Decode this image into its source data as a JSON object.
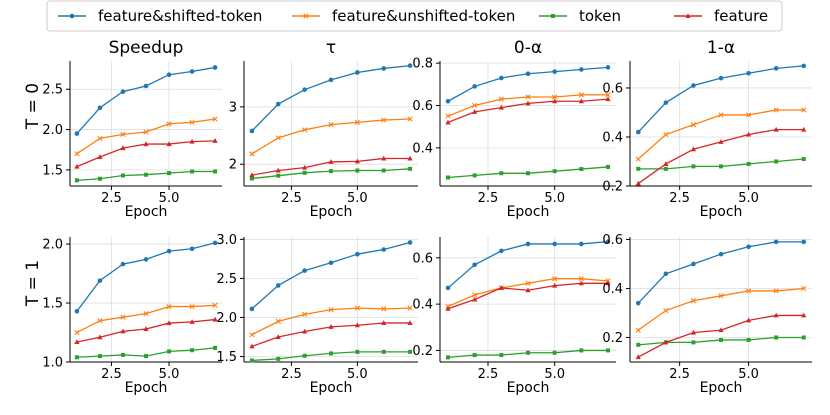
{
  "legend": {
    "entries": [
      {
        "name": "feature&shifted-token",
        "color": "#1f77b4",
        "marker": "circle"
      },
      {
        "name": "feature&unshifted-token",
        "color": "#ff7f0e",
        "marker": "x"
      },
      {
        "name": "token",
        "color": "#2ca02c",
        "marker": "square"
      },
      {
        "name": "feature",
        "color": "#d62728",
        "marker": "triangle"
      }
    ],
    "placement": "top-center"
  },
  "row_labels": [
    "T = 0",
    "T = 1"
  ],
  "column_titles": [
    "Speedup",
    "τ",
    "0-α",
    "1-α"
  ],
  "chart_data": [
    {
      "type": "line",
      "title": "Speedup",
      "row": "T = 0",
      "xlabel": "Epoch",
      "ylabel": "",
      "x": [
        1,
        2,
        3,
        4,
        5,
        6,
        7
      ],
      "xlim": [
        0.7,
        7.3
      ],
      "xticks": [
        "2.5",
        "5.0"
      ],
      "ylim": [
        1.3,
        2.85
      ],
      "yticks": [
        "1.5",
        "2.0",
        "2.5"
      ],
      "grid": true,
      "series": [
        {
          "name": "feature&shifted-token",
          "values": [
            1.95,
            2.27,
            2.47,
            2.54,
            2.68,
            2.72,
            2.77
          ]
        },
        {
          "name": "feature&unshifted-token",
          "values": [
            1.7,
            1.89,
            1.94,
            1.97,
            2.07,
            2.09,
            2.13
          ]
        },
        {
          "name": "token",
          "values": [
            1.37,
            1.39,
            1.43,
            1.44,
            1.46,
            1.48,
            1.48
          ]
        },
        {
          "name": "feature",
          "values": [
            1.54,
            1.66,
            1.77,
            1.82,
            1.82,
            1.85,
            1.86
          ]
        }
      ]
    },
    {
      "type": "line",
      "title": "τ",
      "row": "T = 0",
      "xlabel": "Epoch",
      "ylabel": "",
      "x": [
        1,
        2,
        3,
        4,
        5,
        6,
        7
      ],
      "xlim": [
        0.7,
        7.3
      ],
      "xticks": [
        "2.5",
        "5.0"
      ],
      "ylim": [
        1.62,
        3.8
      ],
      "yticks": [
        "2",
        "3"
      ],
      "grid": true,
      "series": [
        {
          "name": "feature&shifted-token",
          "values": [
            2.58,
            3.05,
            3.3,
            3.47,
            3.6,
            3.67,
            3.72
          ]
        },
        {
          "name": "feature&unshifted-token",
          "values": [
            2.18,
            2.46,
            2.6,
            2.69,
            2.73,
            2.77,
            2.79
          ]
        },
        {
          "name": "token",
          "values": [
            1.75,
            1.8,
            1.85,
            1.88,
            1.89,
            1.89,
            1.92
          ]
        },
        {
          "name": "feature",
          "values": [
            1.81,
            1.89,
            1.94,
            2.04,
            2.05,
            2.1,
            2.1
          ]
        }
      ]
    },
    {
      "type": "line",
      "title": "0-α",
      "row": "T = 0",
      "xlabel": "Epoch",
      "ylabel": "",
      "x": [
        1,
        2,
        3,
        4,
        5,
        6,
        7
      ],
      "xlim": [
        0.7,
        7.3
      ],
      "xticks": [
        "2.5",
        "5.0"
      ],
      "ylim": [
        0.22,
        0.81
      ],
      "yticks": [
        "0.4",
        "0.6",
        "0.8"
      ],
      "grid": true,
      "series": [
        {
          "name": "feature&shifted-token",
          "values": [
            0.62,
            0.69,
            0.73,
            0.75,
            0.76,
            0.77,
            0.78
          ]
        },
        {
          "name": "feature&unshifted-token",
          "values": [
            0.55,
            0.6,
            0.63,
            0.64,
            0.64,
            0.65,
            0.65
          ]
        },
        {
          "name": "token",
          "values": [
            0.26,
            0.27,
            0.28,
            0.28,
            0.29,
            0.3,
            0.31
          ]
        },
        {
          "name": "feature",
          "values": [
            0.52,
            0.57,
            0.59,
            0.61,
            0.62,
            0.62,
            0.63
          ]
        }
      ]
    },
    {
      "type": "line",
      "title": "1-α",
      "row": "T = 0",
      "xlabel": "Epoch",
      "ylabel": "",
      "x": [
        1,
        2,
        3,
        4,
        5,
        6,
        7
      ],
      "xlim": [
        0.7,
        7.3
      ],
      "xticks": [
        "2.5",
        "5.0"
      ],
      "ylim": [
        0.2,
        0.71
      ],
      "yticks": [
        "0.2",
        "0.4",
        "0.6"
      ],
      "grid": true,
      "series": [
        {
          "name": "feature&shifted-token",
          "values": [
            0.42,
            0.54,
            0.61,
            0.64,
            0.66,
            0.68,
            0.69
          ]
        },
        {
          "name": "feature&unshifted-token",
          "values": [
            0.31,
            0.41,
            0.45,
            0.49,
            0.49,
            0.51,
            0.51
          ]
        },
        {
          "name": "token",
          "values": [
            0.27,
            0.27,
            0.28,
            0.28,
            0.29,
            0.3,
            0.31
          ]
        },
        {
          "name": "feature",
          "values": [
            0.21,
            0.29,
            0.35,
            0.38,
            0.41,
            0.43,
            0.43
          ]
        }
      ]
    },
    {
      "type": "line",
      "title": "",
      "row": "T = 1",
      "xlabel": "Epoch",
      "ylabel": "",
      "x": [
        1,
        2,
        3,
        4,
        5,
        6,
        7
      ],
      "xlim": [
        0.7,
        7.3
      ],
      "xticks": [
        "2.5",
        "5.0"
      ],
      "ylim": [
        1.0,
        2.06
      ],
      "yticks": [
        "1.0",
        "1.5",
        "2.0"
      ],
      "grid": true,
      "series": [
        {
          "name": "feature&shifted-token",
          "values": [
            1.43,
            1.69,
            1.83,
            1.87,
            1.94,
            1.96,
            2.01
          ]
        },
        {
          "name": "feature&unshifted-token",
          "values": [
            1.25,
            1.35,
            1.38,
            1.41,
            1.47,
            1.47,
            1.48
          ]
        },
        {
          "name": "token",
          "values": [
            1.04,
            1.05,
            1.06,
            1.05,
            1.09,
            1.1,
            1.12
          ]
        },
        {
          "name": "feature",
          "values": [
            1.17,
            1.21,
            1.26,
            1.28,
            1.33,
            1.34,
            1.36
          ]
        }
      ]
    },
    {
      "type": "line",
      "title": "",
      "row": "T = 1",
      "xlabel": "Epoch",
      "ylabel": "",
      "x": [
        1,
        2,
        3,
        4,
        5,
        6,
        7
      ],
      "xlim": [
        0.7,
        7.3
      ],
      "xticks": [
        "2.5",
        "5.0"
      ],
      "ylim": [
        1.43,
        3.03
      ],
      "yticks": [
        "1.5",
        "2.0",
        "2.5",
        "3.0"
      ],
      "grid": true,
      "series": [
        {
          "name": "feature&shifted-token",
          "values": [
            2.11,
            2.41,
            2.6,
            2.7,
            2.81,
            2.87,
            2.96
          ]
        },
        {
          "name": "feature&unshifted-token",
          "values": [
            1.78,
            1.95,
            2.04,
            2.1,
            2.12,
            2.11,
            2.12
          ]
        },
        {
          "name": "token",
          "values": [
            1.45,
            1.47,
            1.51,
            1.54,
            1.56,
            1.56,
            1.56
          ]
        },
        {
          "name": "feature",
          "values": [
            1.63,
            1.75,
            1.82,
            1.88,
            1.9,
            1.93,
            1.93
          ]
        }
      ]
    },
    {
      "type": "line",
      "title": "",
      "row": "T = 1",
      "xlabel": "Epoch",
      "ylabel": "",
      "x": [
        1,
        2,
        3,
        4,
        5,
        6,
        7
      ],
      "xlim": [
        0.7,
        7.3
      ],
      "xticks": [
        "2.5",
        "5.0"
      ],
      "ylim": [
        0.15,
        0.69
      ],
      "yticks": [
        "0.2",
        "0.4",
        "0.6"
      ],
      "grid": true,
      "series": [
        {
          "name": "feature&shifted-token",
          "values": [
            0.47,
            0.57,
            0.63,
            0.66,
            0.66,
            0.66,
            0.67
          ]
        },
        {
          "name": "feature&unshifted-token",
          "values": [
            0.39,
            0.44,
            0.47,
            0.49,
            0.51,
            0.51,
            0.5
          ]
        },
        {
          "name": "token",
          "values": [
            0.17,
            0.18,
            0.18,
            0.19,
            0.19,
            0.2,
            0.2
          ]
        },
        {
          "name": "feature",
          "values": [
            0.38,
            0.42,
            0.47,
            0.46,
            0.48,
            0.49,
            0.49
          ]
        }
      ]
    },
    {
      "type": "line",
      "title": "",
      "row": "T = 1",
      "xlabel": "Epoch",
      "ylabel": "",
      "x": [
        1,
        2,
        3,
        4,
        5,
        6,
        7
      ],
      "xlim": [
        0.7,
        7.3
      ],
      "xticks": [
        "2.5",
        "5.0"
      ],
      "ylim": [
        0.1,
        0.61
      ],
      "yticks": [
        "0.2",
        "0.4",
        "0.6"
      ],
      "grid": true,
      "series": [
        {
          "name": "feature&shifted-token",
          "values": [
            0.34,
            0.46,
            0.5,
            0.54,
            0.57,
            0.59,
            0.59
          ]
        },
        {
          "name": "feature&unshifted-token",
          "values": [
            0.23,
            0.31,
            0.35,
            0.37,
            0.39,
            0.39,
            0.4
          ]
        },
        {
          "name": "token",
          "values": [
            0.17,
            0.18,
            0.18,
            0.19,
            0.19,
            0.2,
            0.2
          ]
        },
        {
          "name": "feature",
          "values": [
            0.12,
            0.18,
            0.22,
            0.23,
            0.27,
            0.29,
            0.29
          ]
        }
      ]
    }
  ]
}
